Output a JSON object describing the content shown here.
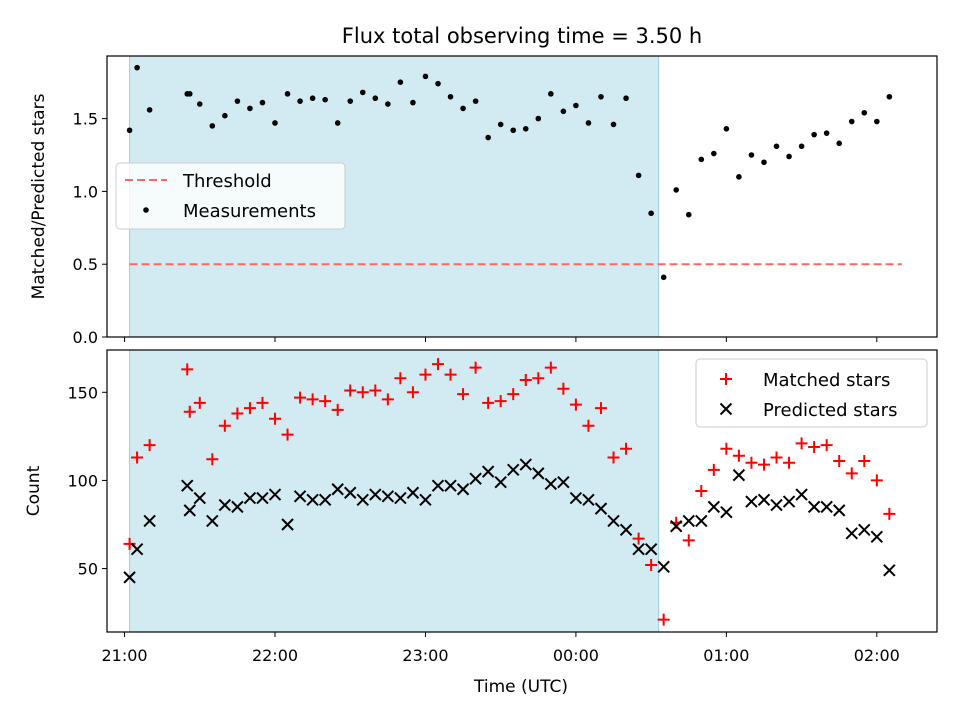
{
  "chart_data": [
    {
      "type": "scatter",
      "title": "Flux total observing time = 3.50 h",
      "ylabel": "Matched/Predicted stars",
      "xlabel": "",
      "xlim": [
        "20:53",
        "02:24"
      ],
      "ylim": [
        0,
        1.93
      ],
      "yticks": [
        "0.0",
        "0.5",
        "1.0",
        "1.5"
      ],
      "shaded_region": {
        "start": "21:02",
        "end": "00:33",
        "color": "#add8e6"
      },
      "threshold": {
        "name": "Threshold",
        "value": 0.5,
        "x_start": "21:02",
        "x_end": "02:10",
        "color": "#ff6666"
      },
      "legend": {
        "position": "center-left",
        "entries": [
          "Threshold",
          "Measurements"
        ]
      },
      "series": [
        {
          "name": "Measurements",
          "color": "#000000",
          "points": [
            [
              "21:02",
              1.42
            ],
            [
              "21:05",
              1.85
            ],
            [
              "21:10",
              1.56
            ],
            [
              "21:25",
              1.67
            ],
            [
              "21:26",
              1.67
            ],
            [
              "21:30",
              1.6
            ],
            [
              "21:35",
              1.45
            ],
            [
              "21:40",
              1.52
            ],
            [
              "21:45",
              1.62
            ],
            [
              "21:50",
              1.57
            ],
            [
              "21:55",
              1.61
            ],
            [
              "22:00",
              1.47
            ],
            [
              "22:05",
              1.67
            ],
            [
              "22:10",
              1.62
            ],
            [
              "22:15",
              1.64
            ],
            [
              "22:20",
              1.63
            ],
            [
              "22:25",
              1.47
            ],
            [
              "22:30",
              1.62
            ],
            [
              "22:35",
              1.68
            ],
            [
              "22:40",
              1.64
            ],
            [
              "22:45",
              1.6
            ],
            [
              "22:50",
              1.75
            ],
            [
              "22:55",
              1.61
            ],
            [
              "23:00",
              1.79
            ],
            [
              "23:05",
              1.74
            ],
            [
              "23:10",
              1.65
            ],
            [
              "23:15",
              1.57
            ],
            [
              "23:20",
              1.62
            ],
            [
              "23:25",
              1.37
            ],
            [
              "23:30",
              1.46
            ],
            [
              "23:35",
              1.42
            ],
            [
              "23:40",
              1.43
            ],
            [
              "23:45",
              1.5
            ],
            [
              "23:50",
              1.67
            ],
            [
              "23:55",
              1.55
            ],
            [
              "00:00",
              1.59
            ],
            [
              "00:05",
              1.47
            ],
            [
              "00:10",
              1.65
            ],
            [
              "00:15",
              1.46
            ],
            [
              "00:20",
              1.64
            ],
            [
              "00:25",
              1.11
            ],
            [
              "00:30",
              0.85
            ],
            [
              "00:35",
              0.41
            ],
            [
              "00:40",
              1.01
            ],
            [
              "00:45",
              0.84
            ],
            [
              "00:50",
              1.22
            ],
            [
              "00:55",
              1.26
            ],
            [
              "01:00",
              1.43
            ],
            [
              "01:05",
              1.1
            ],
            [
              "01:10",
              1.25
            ],
            [
              "01:15",
              1.2
            ],
            [
              "01:20",
              1.31
            ],
            [
              "01:25",
              1.24
            ],
            [
              "01:30",
              1.31
            ],
            [
              "01:35",
              1.39
            ],
            [
              "01:40",
              1.4
            ],
            [
              "01:45",
              1.33
            ],
            [
              "01:50",
              1.48
            ],
            [
              "01:55",
              1.54
            ],
            [
              "02:00",
              1.48
            ],
            [
              "02:05",
              1.65
            ]
          ]
        }
      ]
    },
    {
      "type": "scatter",
      "title": "",
      "xlabel": "Time (UTC)",
      "ylabel": "Count",
      "xlim": [
        "20:53",
        "02:24"
      ],
      "ylim": [
        14,
        174
      ],
      "yticks": [
        "50",
        "100",
        "150"
      ],
      "xticks": [
        "21:00",
        "22:00",
        "23:00",
        "00:00",
        "01:00",
        "02:00"
      ],
      "shaded_region": {
        "start": "21:02",
        "end": "00:33",
        "color": "#add8e6"
      },
      "legend": {
        "position": "top-right",
        "entries": [
          "Matched stars",
          "Predicted stars"
        ]
      },
      "series": [
        {
          "name": "Matched stars",
          "marker": "plus",
          "color": "#ff0000",
          "points": [
            [
              "21:02",
              64
            ],
            [
              "21:05",
              113
            ],
            [
              "21:10",
              120
            ],
            [
              "21:25",
              163
            ],
            [
              "21:26",
              139
            ],
            [
              "21:30",
              144
            ],
            [
              "21:35",
              112
            ],
            [
              "21:40",
              131
            ],
            [
              "21:45",
              138
            ],
            [
              "21:50",
              141
            ],
            [
              "21:55",
              144
            ],
            [
              "22:00",
              135
            ],
            [
              "22:05",
              126
            ],
            [
              "22:10",
              147
            ],
            [
              "22:15",
              146
            ],
            [
              "22:20",
              145
            ],
            [
              "22:25",
              140
            ],
            [
              "22:30",
              151
            ],
            [
              "22:35",
              150
            ],
            [
              "22:40",
              151
            ],
            [
              "22:45",
              146
            ],
            [
              "22:50",
              158
            ],
            [
              "22:55",
              150
            ],
            [
              "23:00",
              160
            ],
            [
              "23:05",
              166
            ],
            [
              "23:10",
              160
            ],
            [
              "23:15",
              149
            ],
            [
              "23:20",
              164
            ],
            [
              "23:25",
              144
            ],
            [
              "23:30",
              145
            ],
            [
              "23:35",
              149
            ],
            [
              "23:40",
              157
            ],
            [
              "23:45",
              158
            ],
            [
              "23:50",
              164
            ],
            [
              "23:55",
              152
            ],
            [
              "00:00",
              143
            ],
            [
              "00:05",
              131
            ],
            [
              "00:10",
              141
            ],
            [
              "00:15",
              113
            ],
            [
              "00:20",
              118
            ],
            [
              "00:25",
              67
            ],
            [
              "00:30",
              52
            ],
            [
              "00:35",
              21
            ],
            [
              "00:40",
              76
            ],
            [
              "00:45",
              66
            ],
            [
              "00:50",
              94
            ],
            [
              "00:55",
              106
            ],
            [
              "01:00",
              118
            ],
            [
              "01:05",
              114
            ],
            [
              "01:10",
              110
            ],
            [
              "01:15",
              109
            ],
            [
              "01:20",
              113
            ],
            [
              "01:25",
              110
            ],
            [
              "01:30",
              121
            ],
            [
              "01:35",
              119
            ],
            [
              "01:40",
              120
            ],
            [
              "01:45",
              111
            ],
            [
              "01:50",
              104
            ],
            [
              "01:55",
              111
            ],
            [
              "02:00",
              100
            ],
            [
              "02:05",
              81
            ]
          ]
        },
        {
          "name": "Predicted stars",
          "marker": "x",
          "color": "#000000",
          "points": [
            [
              "21:02",
              45
            ],
            [
              "21:05",
              61
            ],
            [
              "21:10",
              77
            ],
            [
              "21:25",
              97
            ],
            [
              "21:26",
              83
            ],
            [
              "21:30",
              90
            ],
            [
              "21:35",
              77
            ],
            [
              "21:40",
              86
            ],
            [
              "21:45",
              85
            ],
            [
              "21:50",
              90
            ],
            [
              "21:55",
              90
            ],
            [
              "22:00",
              92
            ],
            [
              "22:05",
              75
            ],
            [
              "22:10",
              91
            ],
            [
              "22:15",
              89
            ],
            [
              "22:20",
              89
            ],
            [
              "22:25",
              95
            ],
            [
              "22:30",
              93
            ],
            [
              "22:35",
              89
            ],
            [
              "22:40",
              92
            ],
            [
              "22:45",
              91
            ],
            [
              "22:50",
              90
            ],
            [
              "22:55",
              93
            ],
            [
              "23:00",
              89
            ],
            [
              "23:05",
              97
            ],
            [
              "23:10",
              97
            ],
            [
              "23:15",
              95
            ],
            [
              "23:20",
              101
            ],
            [
              "23:25",
              105
            ],
            [
              "23:30",
              99
            ],
            [
              "23:35",
              106
            ],
            [
              "23:40",
              109
            ],
            [
              "23:45",
              104
            ],
            [
              "23:50",
              98
            ],
            [
              "23:55",
              99
            ],
            [
              "00:00",
              90
            ],
            [
              "00:05",
              89
            ],
            [
              "00:10",
              84
            ],
            [
              "00:15",
              77
            ],
            [
              "00:20",
              72
            ],
            [
              "00:25",
              61
            ],
            [
              "00:30",
              61
            ],
            [
              "00:35",
              51
            ],
            [
              "00:40",
              74
            ],
            [
              "00:45",
              77
            ],
            [
              "00:50",
              77
            ],
            [
              "00:55",
              85
            ],
            [
              "01:00",
              82
            ],
            [
              "01:05",
              103
            ],
            [
              "01:10",
              88
            ],
            [
              "01:15",
              89
            ],
            [
              "01:20",
              86
            ],
            [
              "01:25",
              88
            ],
            [
              "01:30",
              92
            ],
            [
              "01:35",
              85
            ],
            [
              "01:40",
              85
            ],
            [
              "01:45",
              83
            ],
            [
              "01:50",
              70
            ],
            [
              "01:55",
              72
            ],
            [
              "02:00",
              68
            ],
            [
              "02:05",
              49
            ]
          ]
        }
      ]
    }
  ]
}
